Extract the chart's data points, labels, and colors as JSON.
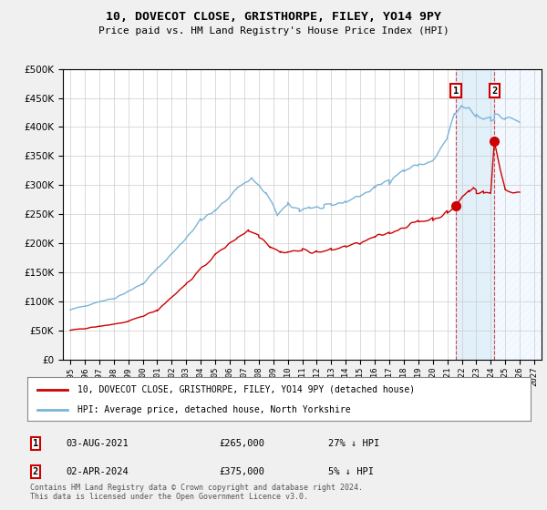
{
  "title": "10, DOVECOT CLOSE, GRISTHORPE, FILEY, YO14 9PY",
  "subtitle": "Price paid vs. HM Land Registry's House Price Index (HPI)",
  "legend_line1": "10, DOVECOT CLOSE, GRISTHORPE, FILEY, YO14 9PY (detached house)",
  "legend_line2": "HPI: Average price, detached house, North Yorkshire",
  "transaction1_date": "03-AUG-2021",
  "transaction1_price": "£265,000",
  "transaction1_hpi": "27% ↓ HPI",
  "transaction2_date": "02-APR-2024",
  "transaction2_price": "£375,000",
  "transaction2_hpi": "5% ↓ HPI",
  "footnote": "Contains HM Land Registry data © Crown copyright and database right 2024.\nThis data is licensed under the Open Government Licence v3.0.",
  "hpi_color": "#7ab4d8",
  "price_color": "#cc0000",
  "background_color": "#f0f0f0",
  "plot_bg_color": "#ffffff",
  "grid_color": "#cccccc",
  "marker1_year": 2021.583,
  "marker1_price_y": 265000,
  "marker2_year": 2024.25,
  "marker2_price_y": 375000,
  "ylim": [
    0,
    500000
  ],
  "xlim_start": 1994.5,
  "xlim_end": 2027.5,
  "xtick_years": [
    1995,
    1996,
    1997,
    1998,
    1999,
    2000,
    2001,
    2002,
    2003,
    2004,
    2005,
    2006,
    2007,
    2008,
    2009,
    2010,
    2011,
    2012,
    2013,
    2014,
    2015,
    2016,
    2017,
    2018,
    2019,
    2020,
    2021,
    2022,
    2023,
    2024,
    2025,
    2026,
    2027
  ]
}
